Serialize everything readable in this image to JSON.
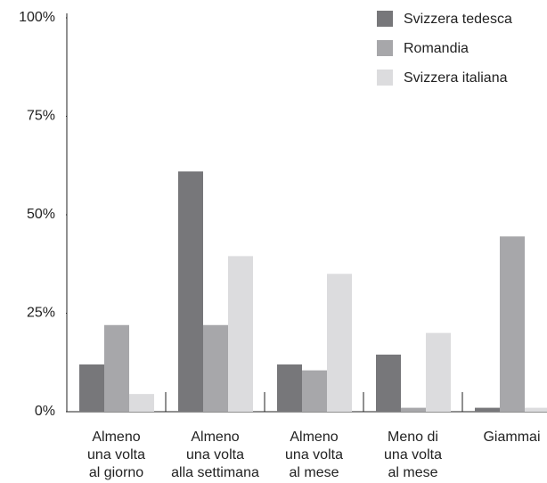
{
  "chart_data": {
    "type": "bar",
    "categories": [
      "Almeno\nuna volta\nal giorno",
      "Almeno\nuna volta\nalla settimana",
      "Almeno\nuna volta\nal mese",
      "Meno di\nuna volta\nal mese",
      "Giammai"
    ],
    "series": [
      {
        "name": "Svizzera tedesca",
        "color": "#77777a",
        "values": [
          12,
          61,
          12,
          14.5,
          1
        ]
      },
      {
        "name": "Romandia",
        "color": "#a7a7aa",
        "values": [
          22,
          22,
          10.5,
          1,
          44.5
        ]
      },
      {
        "name": "Svizzera italiana",
        "color": "#dcdcde",
        "values": [
          4.5,
          39.5,
          35,
          20,
          1
        ]
      }
    ],
    "ylim": [
      0,
      100
    ],
    "yticks": [
      {
        "value": 0,
        "label": "0%"
      },
      {
        "value": 25,
        "label": "25%"
      },
      {
        "value": 50,
        "label": "50%"
      },
      {
        "value": 75,
        "label": "75%"
      },
      {
        "value": 100,
        "label": "100%"
      }
    ],
    "legend": "top-right",
    "grid": false
  }
}
